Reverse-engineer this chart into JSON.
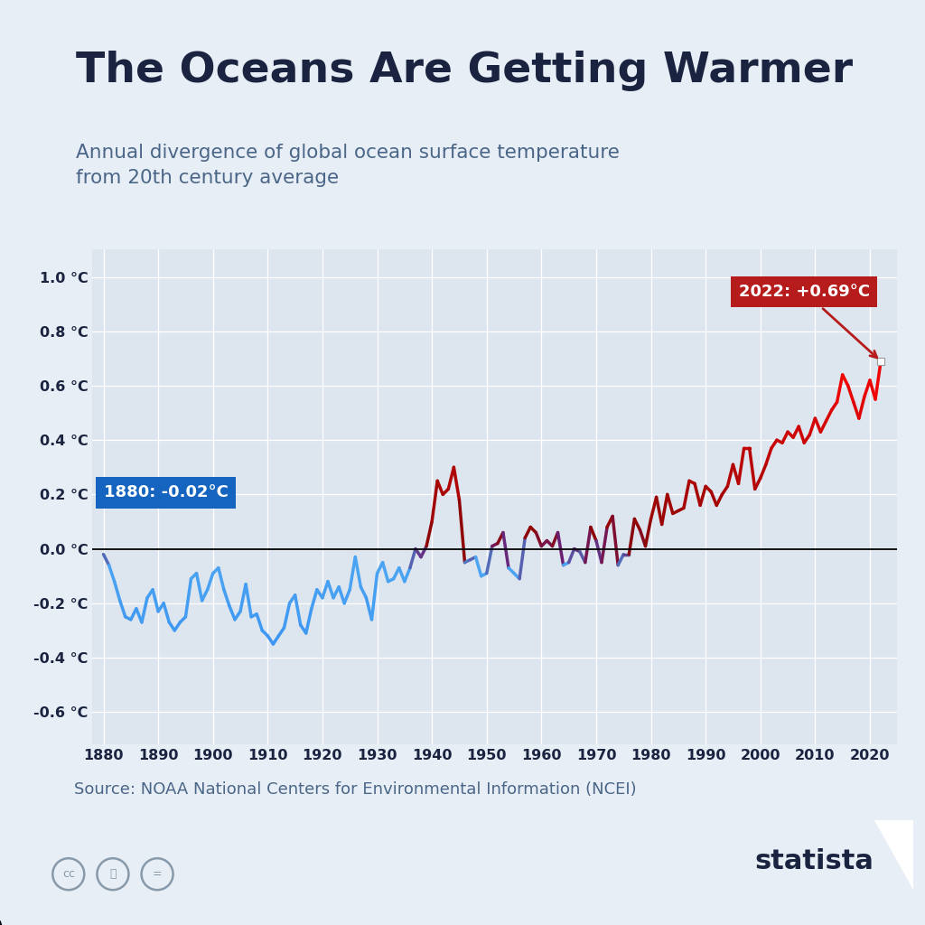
{
  "title": "The Oceans Are Getting Warmer",
  "subtitle": "Annual divergence of global ocean surface temperature\nfrom 20th century average",
  "source": "Source: NOAA National Centers for Environmental Information (NCEI)",
  "bg_color": "#e8eef5",
  "plot_bg_color": "#dde5ef",
  "title_color": "#1a2340",
  "subtitle_color": "#4a6688",
  "source_color": "#4a6688",
  "title_bar_color": "#c0291a",
  "label_1880_text": "1880: -0.02°C",
  "label_2022_text": "2022: +0.69°C",
  "annotation_box_blue": "#1565c0",
  "annotation_box_red": "#b71c1c",
  "years": [
    1880,
    1881,
    1882,
    1883,
    1884,
    1885,
    1886,
    1887,
    1888,
    1889,
    1890,
    1891,
    1892,
    1893,
    1894,
    1895,
    1896,
    1897,
    1898,
    1899,
    1900,
    1901,
    1902,
    1903,
    1904,
    1905,
    1906,
    1907,
    1908,
    1909,
    1910,
    1911,
    1912,
    1913,
    1914,
    1915,
    1916,
    1917,
    1918,
    1919,
    1920,
    1921,
    1922,
    1923,
    1924,
    1925,
    1926,
    1927,
    1928,
    1929,
    1930,
    1931,
    1932,
    1933,
    1934,
    1935,
    1936,
    1937,
    1938,
    1939,
    1940,
    1941,
    1942,
    1943,
    1944,
    1945,
    1946,
    1947,
    1948,
    1949,
    1950,
    1951,
    1952,
    1953,
    1954,
    1955,
    1956,
    1957,
    1958,
    1959,
    1960,
    1961,
    1962,
    1963,
    1964,
    1965,
    1966,
    1967,
    1968,
    1969,
    1970,
    1971,
    1972,
    1973,
    1974,
    1975,
    1976,
    1977,
    1978,
    1979,
    1980,
    1981,
    1982,
    1983,
    1984,
    1985,
    1986,
    1987,
    1988,
    1989,
    1990,
    1991,
    1992,
    1993,
    1994,
    1995,
    1996,
    1997,
    1998,
    1999,
    2000,
    2001,
    2002,
    2003,
    2004,
    2005,
    2006,
    2007,
    2008,
    2009,
    2010,
    2011,
    2012,
    2013,
    2014,
    2015,
    2016,
    2017,
    2018,
    2019,
    2020,
    2021,
    2022
  ],
  "values": [
    -0.02,
    -0.06,
    -0.12,
    -0.19,
    -0.25,
    -0.26,
    -0.22,
    -0.27,
    -0.18,
    -0.15,
    -0.23,
    -0.2,
    -0.27,
    -0.3,
    -0.27,
    -0.25,
    -0.11,
    -0.09,
    -0.19,
    -0.15,
    -0.09,
    -0.07,
    -0.15,
    -0.21,
    -0.26,
    -0.23,
    -0.13,
    -0.25,
    -0.24,
    -0.3,
    -0.32,
    -0.35,
    -0.32,
    -0.29,
    -0.2,
    -0.17,
    -0.28,
    -0.31,
    -0.22,
    -0.15,
    -0.18,
    -0.12,
    -0.18,
    -0.14,
    -0.2,
    -0.15,
    -0.03,
    -0.14,
    -0.18,
    -0.26,
    -0.09,
    -0.05,
    -0.12,
    -0.11,
    -0.07,
    -0.12,
    -0.07,
    0.0,
    -0.03,
    0.01,
    0.1,
    0.25,
    0.2,
    0.22,
    0.3,
    0.18,
    -0.05,
    -0.04,
    -0.03,
    -0.1,
    -0.09,
    0.01,
    0.02,
    0.06,
    -0.07,
    -0.09,
    -0.11,
    0.04,
    0.08,
    0.06,
    0.01,
    0.03,
    0.01,
    0.06,
    -0.06,
    -0.05,
    0.0,
    -0.01,
    -0.05,
    0.08,
    0.03,
    -0.05,
    0.08,
    0.12,
    -0.06,
    -0.02,
    -0.02,
    0.11,
    0.07,
    0.01,
    0.11,
    0.19,
    0.09,
    0.2,
    0.13,
    0.14,
    0.15,
    0.25,
    0.24,
    0.16,
    0.23,
    0.21,
    0.16,
    0.2,
    0.23,
    0.31,
    0.24,
    0.37,
    0.37,
    0.22,
    0.26,
    0.31,
    0.37,
    0.4,
    0.39,
    0.43,
    0.41,
    0.45,
    0.39,
    0.42,
    0.48,
    0.43,
    0.47,
    0.51,
    0.54,
    0.64,
    0.6,
    0.54,
    0.48,
    0.56,
    0.62,
    0.55,
    0.69
  ]
}
